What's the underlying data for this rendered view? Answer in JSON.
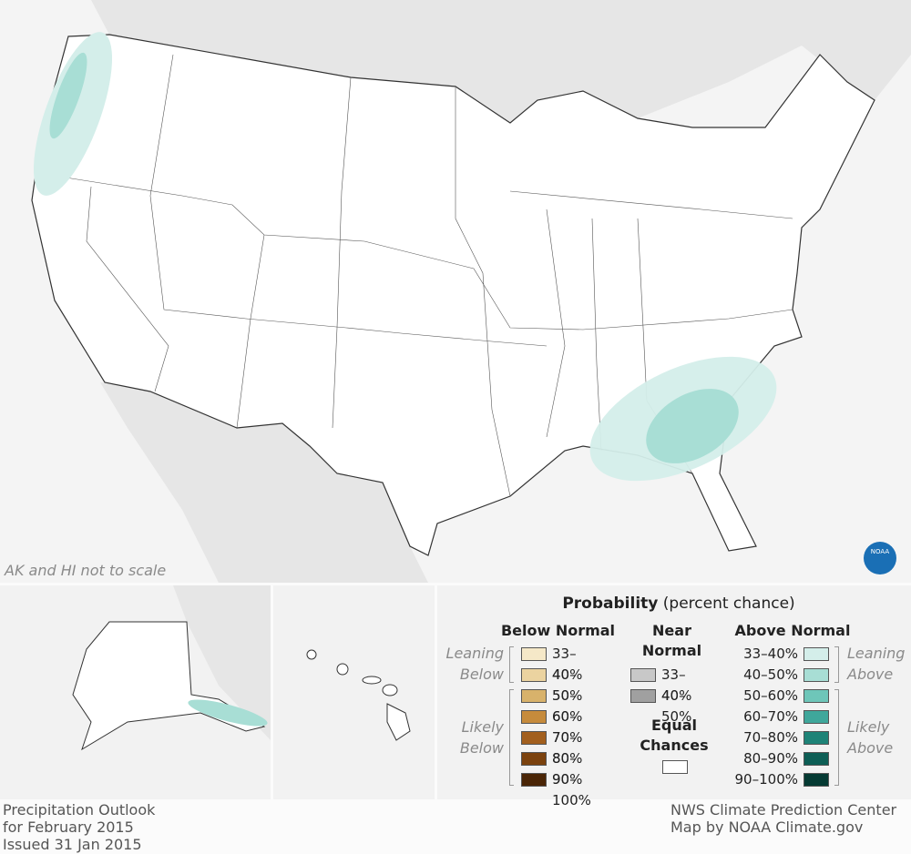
{
  "map": {
    "scale_note": "AK and HI not to scale",
    "logo": "NOAA"
  },
  "legend": {
    "title": "Probability",
    "subtitle": "(percent chance)",
    "below_normal": {
      "heading": "Below Normal",
      "leaning": "Leaning Below",
      "likely": "Likely Below",
      "items": [
        {
          "label": "33–40%",
          "color": "#f5e8c8"
        },
        {
          "label": "40–50%",
          "color": "#ebd3a0"
        },
        {
          "label": "50–60%",
          "color": "#d8b26b"
        },
        {
          "label": "60–70%",
          "color": "#c68b3c"
        },
        {
          "label": "70–80%",
          "color": "#a25f1e"
        },
        {
          "label": "80–90%",
          "color": "#7b420e"
        },
        {
          "label": "90–100%",
          "color": "#4a2506"
        }
      ]
    },
    "near_normal": {
      "heading": "Near Normal",
      "items": [
        {
          "label": "33–40%",
          "color": "#c8c8c8"
        },
        {
          "label": "40–50%",
          "color": "#a0a0a0"
        }
      ]
    },
    "equal_chances": {
      "label": "Equal Chances",
      "color": "#ffffff"
    },
    "above_normal": {
      "heading": "Above Normal",
      "leaning": "Leaning Above",
      "likely": "Likely Above",
      "items": [
        {
          "label": "33–40%",
          "color": "#d4eeea"
        },
        {
          "label": "40–50%",
          "color": "#a8ded5"
        },
        {
          "label": "50–60%",
          "color": "#6ec6b9"
        },
        {
          "label": "60–70%",
          "color": "#3fa79b"
        },
        {
          "label": "70–80%",
          "color": "#1e8377"
        },
        {
          "label": "80–90%",
          "color": "#0d5e55"
        },
        {
          "label": "90–100%",
          "color": "#053a33"
        }
      ]
    }
  },
  "footer": {
    "left": [
      "Precipitation Outlook",
      "for February 2015",
      "Issued 31 Jan 2015"
    ],
    "right": [
      "NWS Climate Prediction Center",
      "Map by NOAA Climate.gov"
    ]
  }
}
